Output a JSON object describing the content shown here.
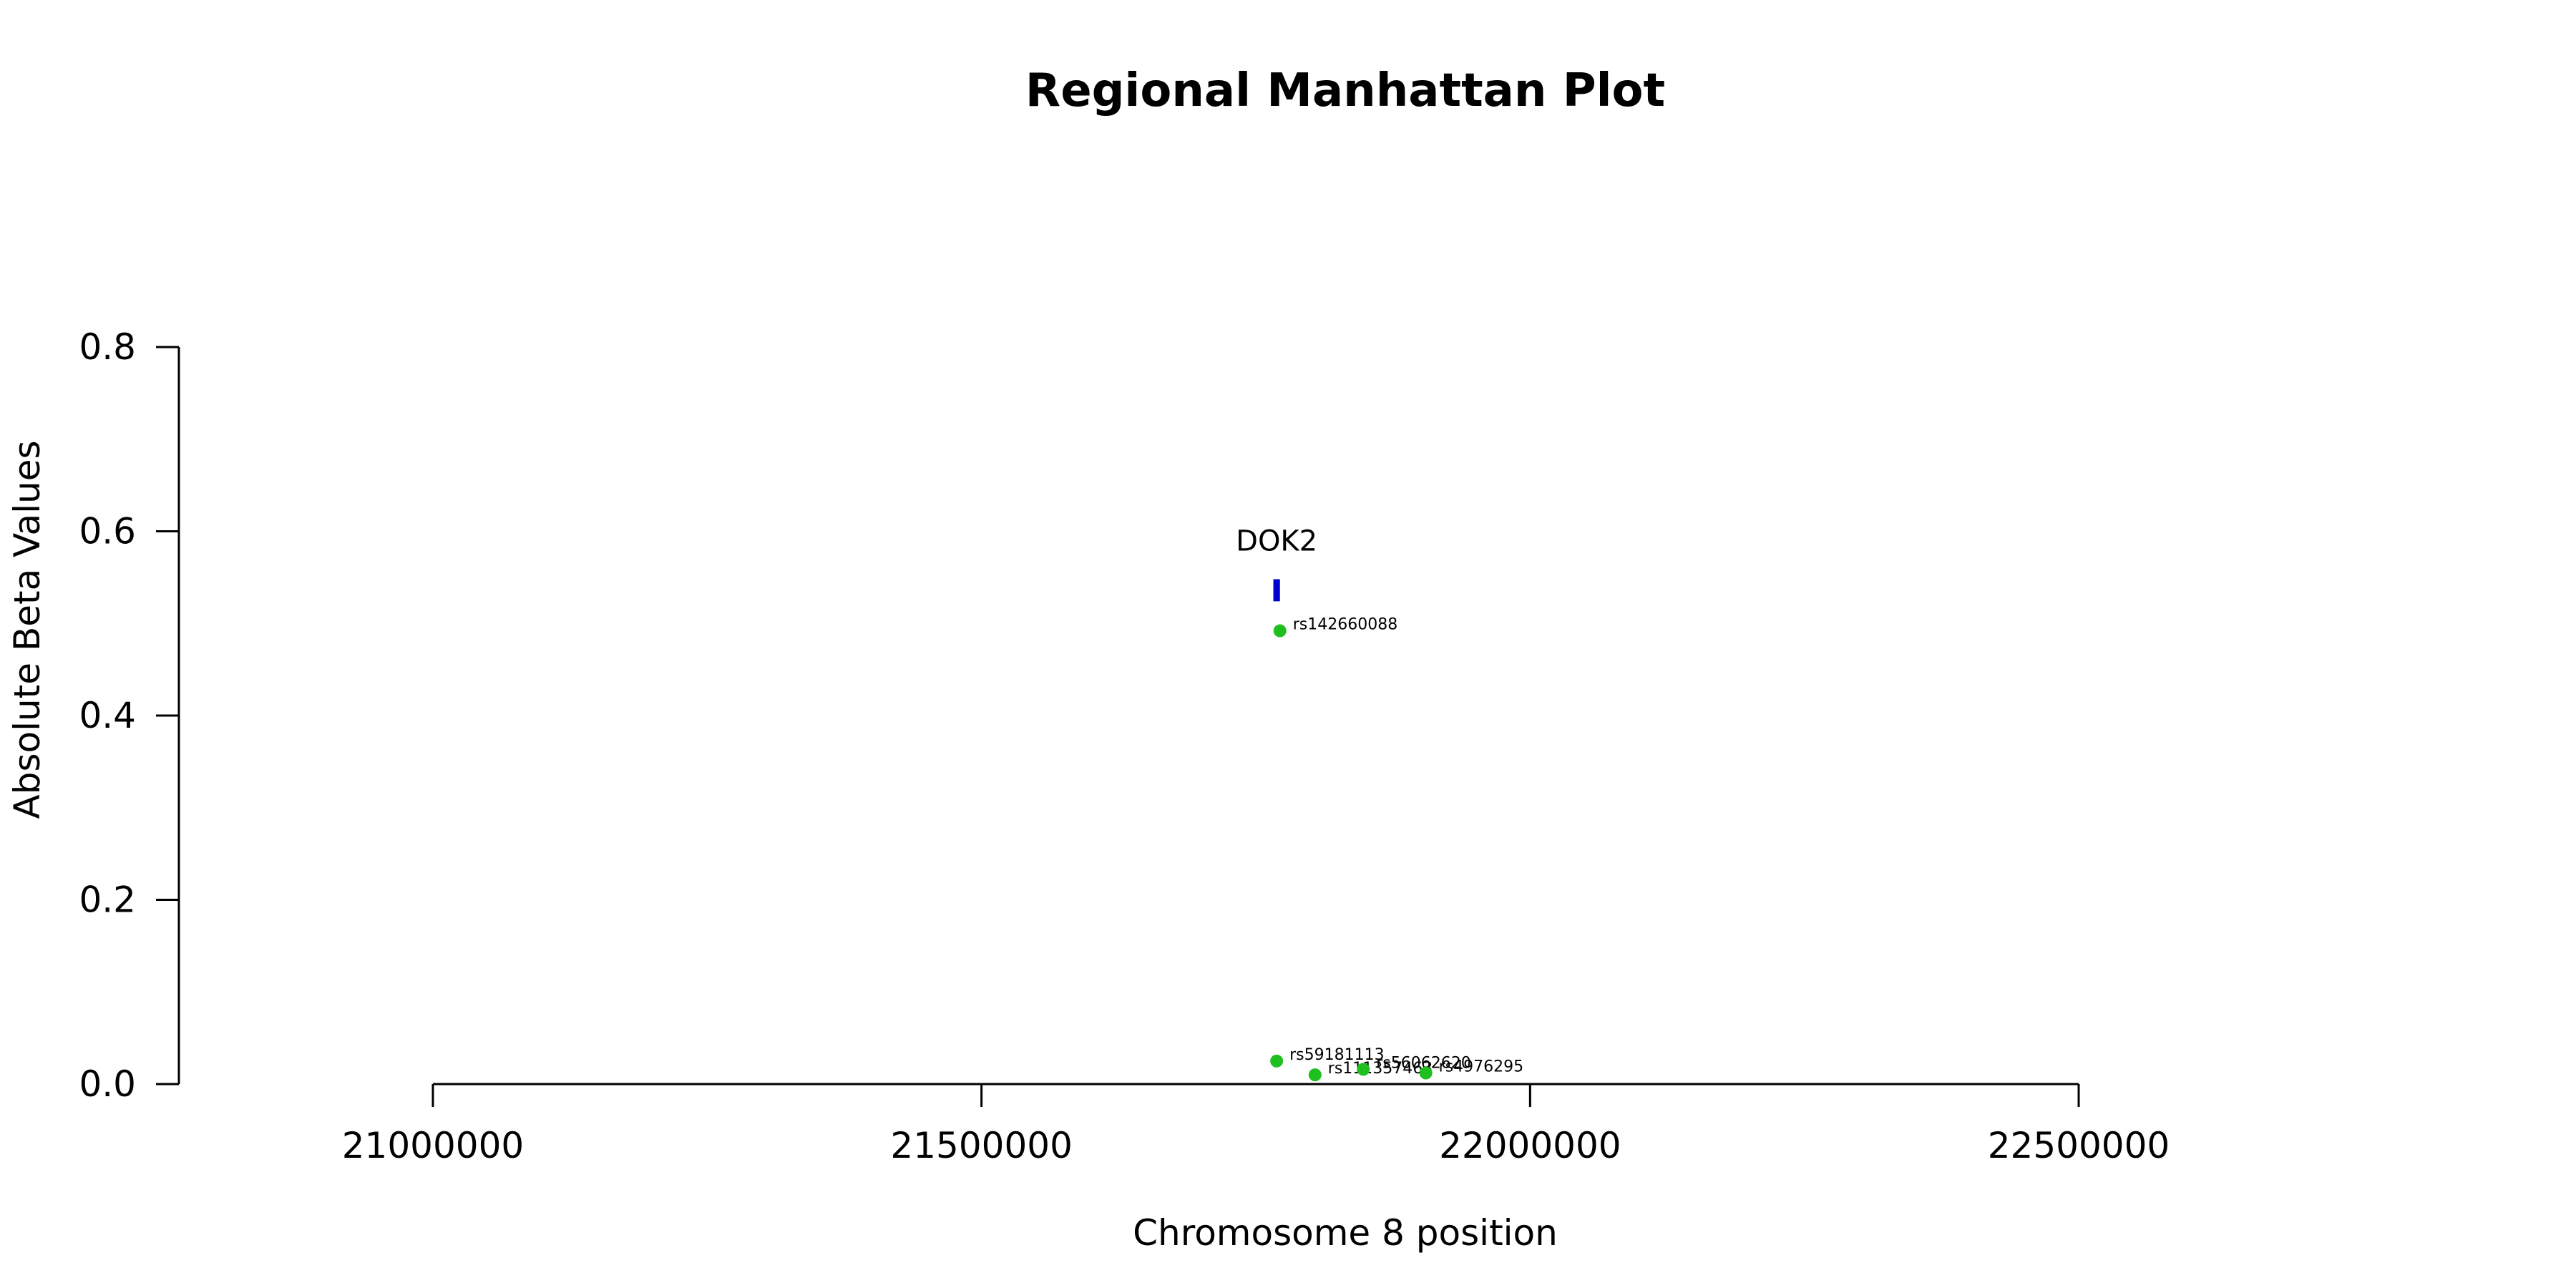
{
  "chart_data": {
    "type": "scatter",
    "title": "Regional Manhattan Plot",
    "xlabel": "Chromosome 8 position",
    "ylabel": "Absolute Beta Values",
    "xlim": [
      21000000,
      22500000
    ],
    "ylim": [
      0,
      0.8
    ],
    "x_ticks": [
      21000000,
      21500000,
      22000000,
      22500000
    ],
    "x_tick_labels": [
      "21000000",
      "21500000",
      "22000000",
      "22500000"
    ],
    "y_ticks": [
      0,
      0.2,
      0.4,
      0.6,
      0.8
    ],
    "y_tick_labels": [
      "0.0",
      "0.2",
      "0.4",
      "0.6",
      "0.8"
    ],
    "grid": false,
    "point_color": "#1fbf1f",
    "gene_color": "#0000d0",
    "points": [
      {
        "snp": "rs142660088",
        "x": 21772000,
        "y": 0.492
      },
      {
        "snp": "rs59181113",
        "x": 21769000,
        "y": 0.025
      },
      {
        "snp": "rs111357463",
        "x": 21804000,
        "y": 0.01
      },
      {
        "snp": "rs56062620",
        "x": 21848000,
        "y": 0.016
      },
      {
        "snp": "rs4976295",
        "x": 21905000,
        "y": 0.012
      }
    ],
    "genes": [
      {
        "name": "DOK2",
        "start": 21766000,
        "end": 21772000,
        "y_low": 0.524,
        "y_high": 0.548
      }
    ]
  }
}
